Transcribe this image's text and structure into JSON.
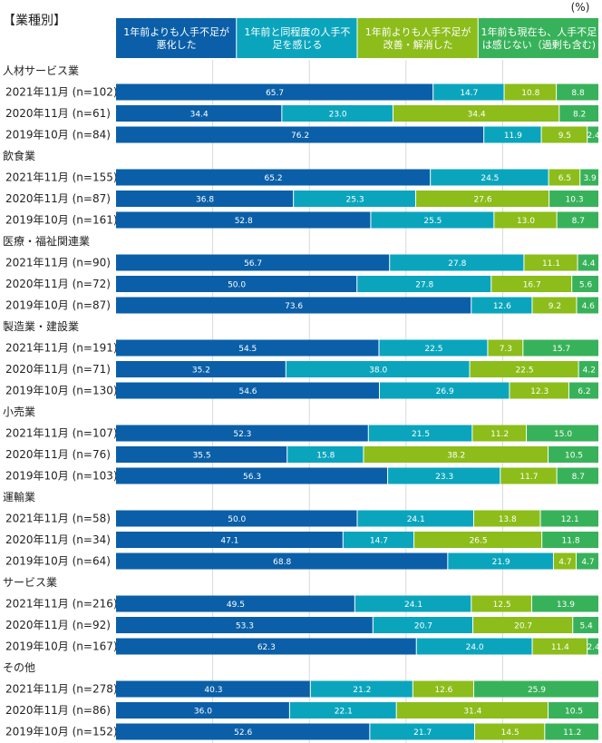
{
  "chart_data": {
    "type": "bar",
    "orientation": "horizontal",
    "stacked": true,
    "title": "【業種別】",
    "unit": "(%)",
    "xlim": [
      0,
      100
    ],
    "grid": true,
    "legend_position": "top",
    "series": [
      {
        "name": "1年前よりも人手不足が\n悪化した",
        "color": "#0a5fa8"
      },
      {
        "name": "1年前と同程度の人手不\n足を感じる",
        "color": "#0aa5bd"
      },
      {
        "name": "1年前よりも人手不足が\n改善・解消した",
        "color": "#8cbd1a"
      },
      {
        "name": "1年前も現在も、人手不足\nは感じない（過剰も含む)",
        "color": "#38b25a"
      }
    ],
    "groups": [
      {
        "name": "人材サービス業",
        "rows": [
          {
            "label": "2021年11月 (n=102)",
            "values": [
              65.7,
              14.7,
              10.8,
              8.8
            ]
          },
          {
            "label": "2020年11月 (n=61)",
            "values": [
              34.4,
              23.0,
              34.4,
              8.2
            ]
          },
          {
            "label": "2019年10月 (n=84)",
            "values": [
              76.2,
              11.9,
              9.5,
              2.4
            ]
          }
        ]
      },
      {
        "name": "飲食業",
        "rows": [
          {
            "label": "2021年11月 (n=155)",
            "values": [
              65.2,
              24.5,
              6.5,
              3.9
            ]
          },
          {
            "label": "2020年11月 (n=87)",
            "values": [
              36.8,
              25.3,
              27.6,
              10.3
            ]
          },
          {
            "label": "2019年10月 (n=161)",
            "values": [
              52.8,
              25.5,
              13.0,
              8.7
            ]
          }
        ]
      },
      {
        "name": "医療・福祉関連業",
        "rows": [
          {
            "label": "2021年11月 (n=90)",
            "values": [
              56.7,
              27.8,
              11.1,
              4.4
            ]
          },
          {
            "label": "2020年11月 (n=72)",
            "values": [
              50.0,
              27.8,
              16.7,
              5.6
            ]
          },
          {
            "label": "2019年10月 (n=87)",
            "values": [
              73.6,
              12.6,
              9.2,
              4.6
            ]
          }
        ]
      },
      {
        "name": "製造業・建設業",
        "rows": [
          {
            "label": "2021年11月 (n=191)",
            "values": [
              54.5,
              22.5,
              7.3,
              15.7
            ]
          },
          {
            "label": "2020年11月 (n=71)",
            "values": [
              35.2,
              38.0,
              22.5,
              4.2
            ]
          },
          {
            "label": "2019年10月 (n=130)",
            "values": [
              54.6,
              26.9,
              12.3,
              6.2
            ]
          }
        ]
      },
      {
        "name": "小売業",
        "rows": [
          {
            "label": "2021年11月 (n=107)",
            "values": [
              52.3,
              21.5,
              11.2,
              15.0
            ]
          },
          {
            "label": "2020年11月 (n=76)",
            "values": [
              35.5,
              15.8,
              38.2,
              10.5
            ]
          },
          {
            "label": "2019年10月 (n=103)",
            "values": [
              56.3,
              23.3,
              11.7,
              8.7
            ]
          }
        ]
      },
      {
        "name": "運輸業",
        "rows": [
          {
            "label": "2021年11月 (n=58)",
            "values": [
              50.0,
              24.1,
              13.8,
              12.1
            ]
          },
          {
            "label": "2020年11月 (n=34)",
            "values": [
              47.1,
              14.7,
              26.5,
              11.8
            ]
          },
          {
            "label": "2019年10月 (n=64)",
            "values": [
              68.8,
              21.9,
              4.7,
              4.7
            ]
          }
        ]
      },
      {
        "name": "サービス業",
        "rows": [
          {
            "label": "2021年11月 (n=216)",
            "values": [
              49.5,
              24.1,
              12.5,
              13.9
            ]
          },
          {
            "label": "2020年11月 (n=92)",
            "values": [
              53.3,
              20.7,
              20.7,
              5.4
            ]
          },
          {
            "label": "2019年10月 (n=167)",
            "values": [
              62.3,
              24.0,
              11.4,
              2.4
            ]
          }
        ]
      },
      {
        "name": "その他",
        "rows": [
          {
            "label": "2021年11月 (n=278)",
            "values": [
              40.3,
              21.2,
              12.6,
              25.9
            ]
          },
          {
            "label": "2020年11月 (n=86)",
            "values": [
              36.0,
              22.1,
              31.4,
              10.5
            ]
          },
          {
            "label": "2019年10月 (n=152)",
            "values": [
              52.6,
              21.7,
              14.5,
              11.2
            ]
          }
        ]
      }
    ]
  }
}
